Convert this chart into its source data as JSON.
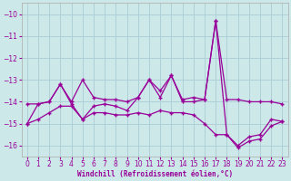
{
  "xlabel": "Windchill (Refroidissement éolien,°C)",
  "x_values": [
    0,
    1,
    2,
    3,
    4,
    5,
    6,
    7,
    8,
    9,
    10,
    11,
    12,
    13,
    14,
    15,
    16,
    17,
    18,
    19,
    20,
    21,
    22,
    23
  ],
  "y_main": [
    -15.0,
    -14.1,
    -14.0,
    -13.2,
    -14.1,
    -14.8,
    -14.2,
    -14.1,
    -14.2,
    -14.4,
    -13.8,
    -13.0,
    -13.8,
    -12.8,
    -14.0,
    -14.0,
    -13.9,
    -10.3,
    -15.5,
    -16.0,
    -15.6,
    -15.5,
    -14.8,
    -14.9
  ],
  "y_upper": [
    -14.1,
    -14.1,
    -14.0,
    -13.2,
    -14.0,
    -13.0,
    -13.8,
    -13.9,
    -13.9,
    -14.0,
    -13.8,
    -13.0,
    -13.5,
    -12.8,
    -13.9,
    -13.8,
    -13.9,
    -10.3,
    -13.9,
    -13.9,
    -14.0,
    -14.0,
    -14.0,
    -14.1
  ],
  "y_lower": [
    -15.0,
    -14.8,
    -14.5,
    -14.2,
    -14.2,
    -14.8,
    -14.5,
    -14.5,
    -14.6,
    -14.6,
    -14.5,
    -14.6,
    -14.4,
    -14.5,
    -14.5,
    -14.6,
    -15.0,
    -15.5,
    -15.5,
    -16.1,
    -15.8,
    -15.7,
    -15.1,
    -14.9
  ],
  "line_color": "#990099",
  "bg_color": "#cce8e8",
  "grid_color": "#b0d0d8",
  "ylim": [
    -16.5,
    -9.5
  ],
  "yticks": [
    -16,
    -15,
    -14,
    -13,
    -12,
    -11,
    -10
  ],
  "xlim": [
    -0.5,
    23.5
  ],
  "xticks": [
    0,
    1,
    2,
    3,
    4,
    5,
    6,
    7,
    8,
    9,
    10,
    11,
    12,
    13,
    14,
    15,
    16,
    17,
    18,
    19,
    20,
    21,
    22,
    23
  ]
}
